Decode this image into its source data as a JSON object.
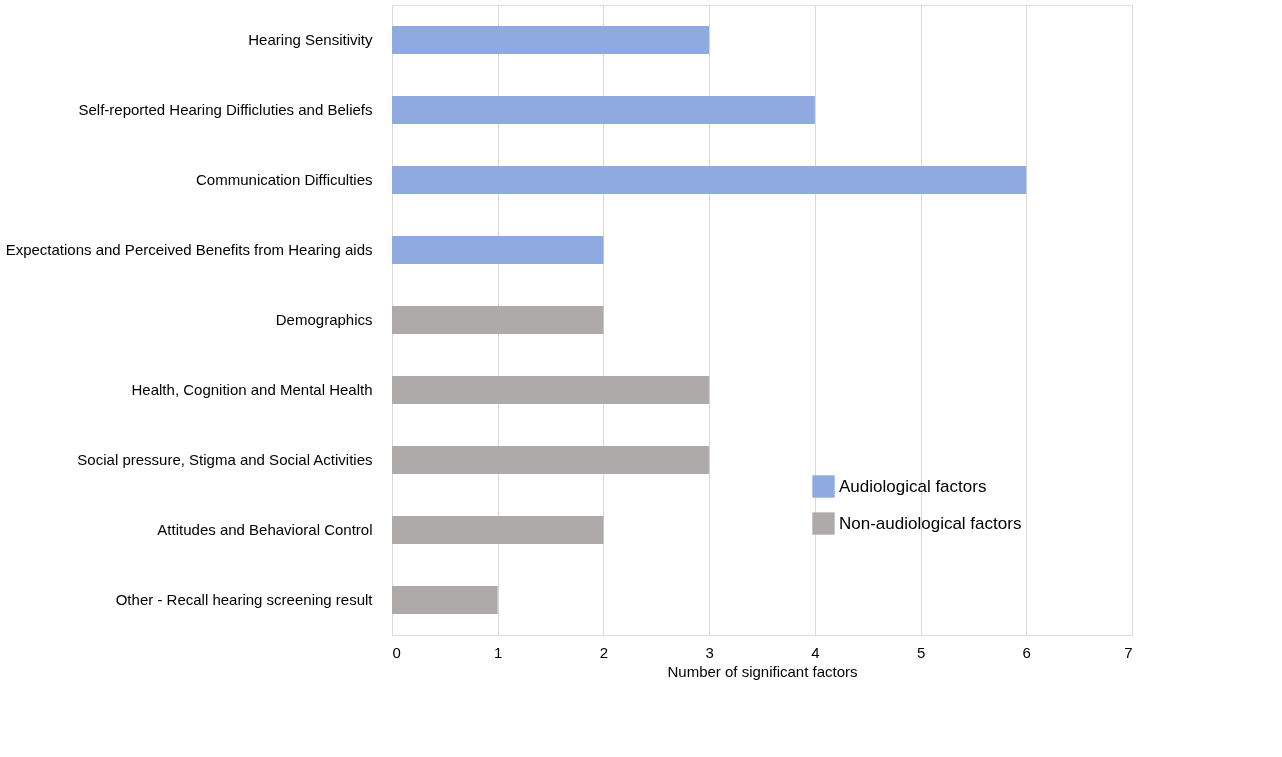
{
  "chart_data": {
    "type": "bar",
    "orientation": "horizontal",
    "xlabel": "Number of significant factors",
    "categories": [
      "Hearing Sensitivity",
      "Self-reported Hearing Difficluties and Beliefs",
      "Communication Difficulties",
      "Expectations and Perceived Benefits from Hearing aids",
      "Demographics",
      "Health, Cognition and Mental Health",
      "Social pressure, Stigma and Social Activities",
      "Attitudes and Behavioral Control",
      "Other - Recall hearing screening result"
    ],
    "series": [
      {
        "name": "Audiological factors",
        "color": "#8eaadf",
        "values": [
          3,
          4,
          6,
          2,
          null,
          null,
          null,
          null,
          null
        ]
      },
      {
        "name": "Non-audiological factors",
        "color": "#aeaaaa",
        "values": [
          null,
          null,
          null,
          null,
          2,
          3,
          3,
          2,
          1
        ]
      }
    ],
    "xlim": [
      0,
      7
    ],
    "xticks": [
      0,
      1,
      2,
      3,
      4,
      5,
      6,
      7
    ],
    "grid": "x",
    "legend": "bottom right"
  }
}
